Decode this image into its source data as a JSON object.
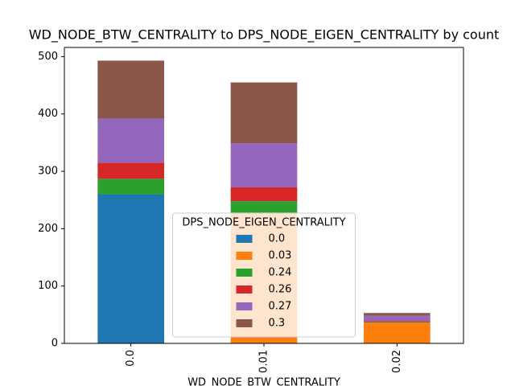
{
  "chart_data": {
    "type": "stacked_bar",
    "title": "WD_NODE_BTW_CENTRALITY to DPS_NODE_EIGEN_CENTRALITY by count",
    "xlabel": "WD_NODE_BTW_CENTRALITY",
    "categories": [
      "0.0",
      "0.01",
      "0.02"
    ],
    "legend_title": "DPS_NODE_EIGEN_CENTRALITY",
    "legend_loc": "lower center",
    "series": [
      {
        "name": "0.0",
        "color": "#1f77b4",
        "values": [
          260,
          0,
          0
        ]
      },
      {
        "name": "0.03",
        "color": "#ff7f0e",
        "values": [
          0,
          228,
          36
        ]
      },
      {
        "name": "0.24",
        "color": "#2ca02c",
        "values": [
          27,
          20,
          1
        ]
      },
      {
        "name": "0.26",
        "color": "#d62728",
        "values": [
          28,
          24,
          2
        ]
      },
      {
        "name": "0.27",
        "color": "#9467bd",
        "values": [
          77,
          77,
          9
        ]
      },
      {
        "name": "0.3",
        "color": "#8c564b",
        "values": [
          101,
          106,
          5
        ]
      }
    ],
    "ylim": [
      0,
      516
    ],
    "yticks": [
      0,
      100,
      200,
      300,
      400,
      500
    ]
  }
}
